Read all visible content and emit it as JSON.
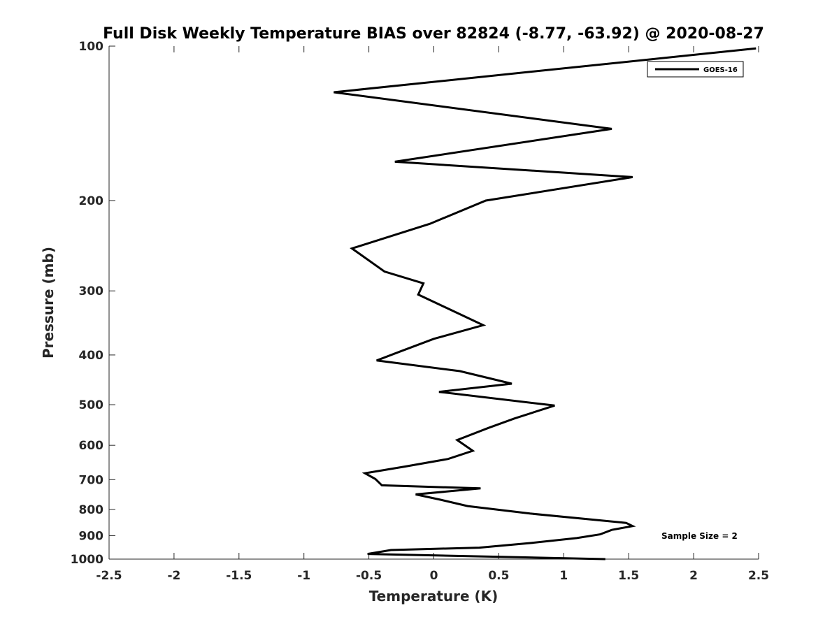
{
  "chart_data": {
    "type": "line",
    "title": "Full Disk Weekly Temperature BIAS over 82824 (-8.77, -63.92) @ 2020-08-27",
    "xlabel": "Temperature (K)",
    "ylabel": "Pressure (mb)",
    "xlim": [
      -2.5,
      2.5
    ],
    "ylim": [
      100,
      1000
    ],
    "yscale": "log",
    "y_reversed": true,
    "xticks": [
      -2.5,
      -2,
      -1.5,
      -1,
      -0.5,
      0,
      0.5,
      1,
      1.5,
      2,
      2.5
    ],
    "xtick_labels": [
      "-2.5",
      "-2",
      "-1.5",
      "-1",
      "-0.5",
      "0",
      "0.5",
      "1",
      "1.5",
      "2",
      "2.5"
    ],
    "yticks": [
      100,
      200,
      300,
      400,
      500,
      600,
      700,
      800,
      900,
      1000
    ],
    "ytick_labels": [
      "100",
      "200",
      "300",
      "400",
      "500",
      "600",
      "700",
      "800",
      "900",
      "1000"
    ],
    "grid": false,
    "legend_position": "top-right",
    "series": [
      {
        "name": "GOES-16",
        "color": "#000000",
        "x": [
          2.48,
          -0.77,
          1.37,
          -0.3,
          1.53,
          0.4,
          -0.03,
          -0.63,
          -0.38,
          -0.08,
          -0.12,
          0.2,
          0.38,
          0.0,
          -0.25,
          -0.44,
          0.2,
          0.6,
          0.04,
          0.93,
          0.62,
          0.42,
          0.18,
          0.3,
          0.11,
          -0.22,
          -0.53,
          -0.45,
          -0.4,
          0.36,
          -0.14,
          0.06,
          0.26,
          0.74,
          1.48,
          1.53,
          1.37,
          1.28,
          1.1,
          0.75,
          0.35,
          -0.33,
          -0.51,
          1.32
        ],
        "y": [
          101,
          123,
          145,
          168,
          180,
          200,
          222,
          248,
          275,
          290,
          305,
          333,
          350,
          372,
          393,
          410,
          430,
          455,
          472,
          502,
          532,
          555,
          586,
          615,
          638,
          660,
          680,
          698,
          718,
          728,
          748,
          767,
          788,
          815,
          850,
          862,
          877,
          895,
          910,
          930,
          950,
          960,
          977,
          1000
        ]
      }
    ],
    "annotations": [
      "Sample Size = 2"
    ]
  }
}
